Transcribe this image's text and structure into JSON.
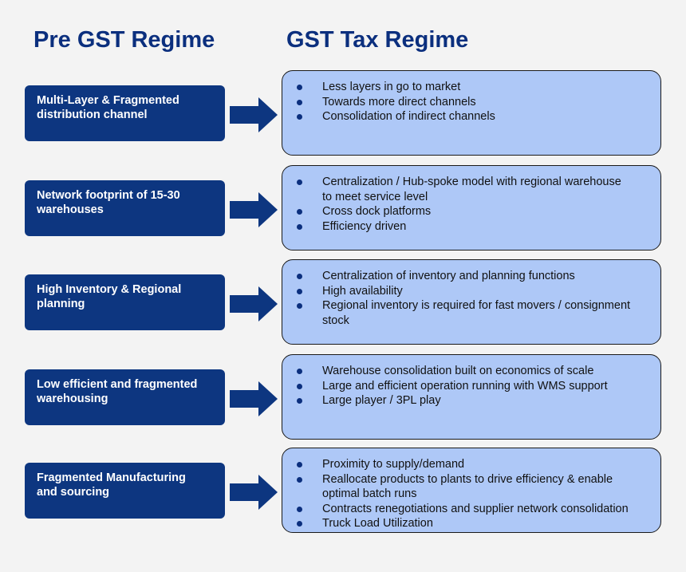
{
  "headings": {
    "left": "Pre GST Regime",
    "right": "GST Tax Regime"
  },
  "colors": {
    "heading": "#0b2f7e",
    "left_box": "#0d3680",
    "arrow": "#0d3680",
    "right_box": "#aec8f7",
    "bullet": "#0b2f7e"
  },
  "icons": {
    "arrow": "arrow-right-icon",
    "bullet": "bullet-dot-icon"
  },
  "rows": [
    {
      "pre": [
        "Multi-Layer & Fragmented",
        "distribution channel"
      ],
      "gst": [
        [
          "Less layers in go to market"
        ],
        [
          "Towards more direct channels"
        ],
        [
          "Consolidation of indirect channels"
        ]
      ]
    },
    {
      "pre": [
        "Network footprint of 15-30",
        "warehouses"
      ],
      "gst": [
        [
          "Centralization / Hub-spoke model with regional warehouse",
          "to meet service level"
        ],
        [
          "Cross dock platforms"
        ],
        [
          "Efficiency driven"
        ]
      ]
    },
    {
      "pre": [
        "High Inventory & Regional",
        "planning"
      ],
      "gst": [
        [
          "Centralization of inventory and planning functions"
        ],
        [
          "High availability"
        ],
        [
          "Regional inventory is required for fast movers / consignment",
          "stock"
        ]
      ]
    },
    {
      "pre": [
        "Low efficient and fragmented",
        "warehousing"
      ],
      "gst": [
        [
          "Warehouse consolidation built on economics of scale"
        ],
        [
          "Large and efficient operation running with WMS support"
        ],
        [
          "Large player / 3PL play"
        ]
      ]
    },
    {
      "pre": [
        "Fragmented Manufacturing",
        "and sourcing"
      ],
      "gst": [
        [
          "Proximity to supply/demand"
        ],
        [
          "Reallocate products to plants to drive efficiency & enable",
          "optimal batch runs"
        ],
        [
          "Contracts renegotiations and supplier network consolidation"
        ],
        [
          "Truck Load Utilization"
        ]
      ]
    }
  ]
}
